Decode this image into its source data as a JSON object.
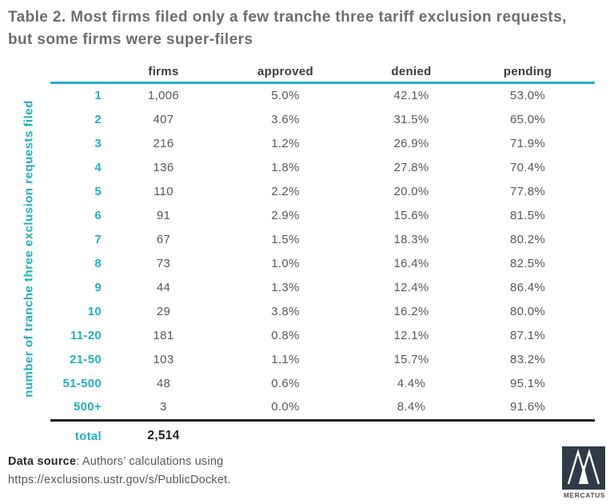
{
  "title": "Table 2. Most firms filed only a few tranche three tariff exclusion requests, but some firms were super-filers",
  "y_axis_label": "number of tranche three exclusion requests filed",
  "chart_data": {
    "type": "table",
    "title": "Table 2. Most firms filed only a few tranche three tariff exclusion requests, but some firms were super-filers",
    "row_axis_label": "number of tranche three exclusion requests filed",
    "columns": [
      "firms",
      "approved",
      "denied",
      "pending"
    ],
    "row_labels": [
      "1",
      "2",
      "3",
      "4",
      "5",
      "6",
      "7",
      "8",
      "9",
      "10",
      "11-20",
      "21-50",
      "51-500",
      "500+"
    ],
    "rows": [
      [
        "1,006",
        "5.0%",
        "42.1%",
        "53.0%"
      ],
      [
        "407",
        "3.6%",
        "31.5%",
        "65.0%"
      ],
      [
        "216",
        "1.2%",
        "26.9%",
        "71.9%"
      ],
      [
        "136",
        "1.8%",
        "27.8%",
        "70.4%"
      ],
      [
        "110",
        "2.2%",
        "20.0%",
        "77.8%"
      ],
      [
        "91",
        "2.9%",
        "15.6%",
        "81.5%"
      ],
      [
        "67",
        "1.5%",
        "18.3%",
        "80.2%"
      ],
      [
        "73",
        "1.0%",
        "16.4%",
        "82.5%"
      ],
      [
        "44",
        "1.3%",
        "12.4%",
        "86.4%"
      ],
      [
        "29",
        "3.8%",
        "16.2%",
        "80.0%"
      ],
      [
        "181",
        "0.8%",
        "12.1%",
        "87.1%"
      ],
      [
        "103",
        "1.1%",
        "15.7%",
        "83.2%"
      ],
      [
        "48",
        "0.6%",
        "4.4%",
        "95.1%"
      ],
      [
        "3",
        "0.0%",
        "8.4%",
        "91.6%"
      ]
    ],
    "total": {
      "label": "total",
      "firms_total": "2,514"
    }
  },
  "footer": {
    "source_label": "Data source",
    "source_rest": ": Authors’ calculations using",
    "source_line2": "https://exclusions.ustr.gov/s/PublicDocket."
  },
  "logo": {
    "text": "MERCATUS"
  },
  "colors": {
    "accent_teal": "#23afc0",
    "title_gray": "#6d6e71",
    "body_gray": "#58595b",
    "rule_black": "#231f20",
    "logo_background": "#323a47"
  }
}
